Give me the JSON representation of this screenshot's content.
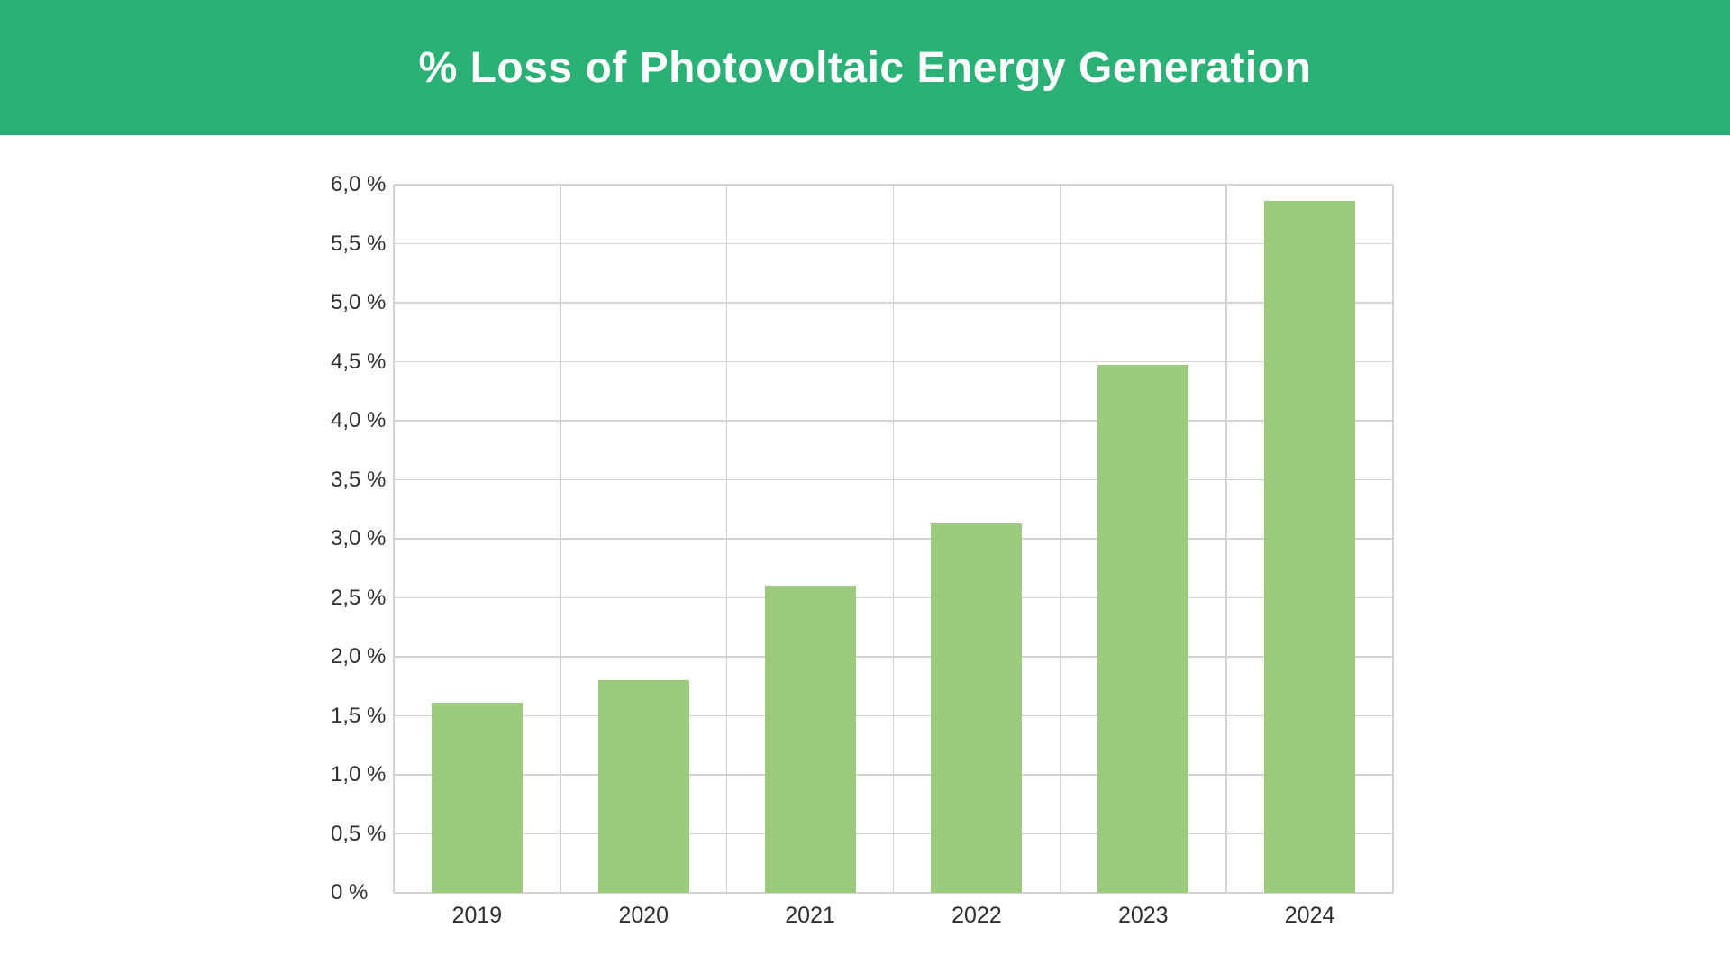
{
  "header": {
    "title": "% Loss of Photovoltaic Energy Generation"
  },
  "chart_data": {
    "type": "bar",
    "title": "% Loss of Photovoltaic Energy Generation",
    "categories": [
      "2019",
      "2020",
      "2021",
      "2022",
      "2023",
      "2024"
    ],
    "values": [
      1.61,
      1.8,
      2.6,
      3.13,
      4.47,
      5.86
    ],
    "xlabel": "",
    "ylabel": "",
    "ylim": [
      0,
      6
    ],
    "y_tick_step": 0.5,
    "y_tick_labels": [
      "0 %",
      "0,5 %",
      "1,0 %",
      "1,5 %",
      "2,0 %",
      "2,5 %",
      "3,0 %",
      "3,5 %",
      "4,0 %",
      "4,5 %",
      "5,0 %",
      "5,5 %",
      "6,0 %"
    ],
    "grid": true,
    "legend": false,
    "colors": {
      "header_bg": "#2bb176",
      "header_text": "#ffffff",
      "bar_fill": "#9ccb7d",
      "gridline": "#d3d3d3",
      "axis_text": "#2f2f2f",
      "background": "#ffffff"
    }
  }
}
